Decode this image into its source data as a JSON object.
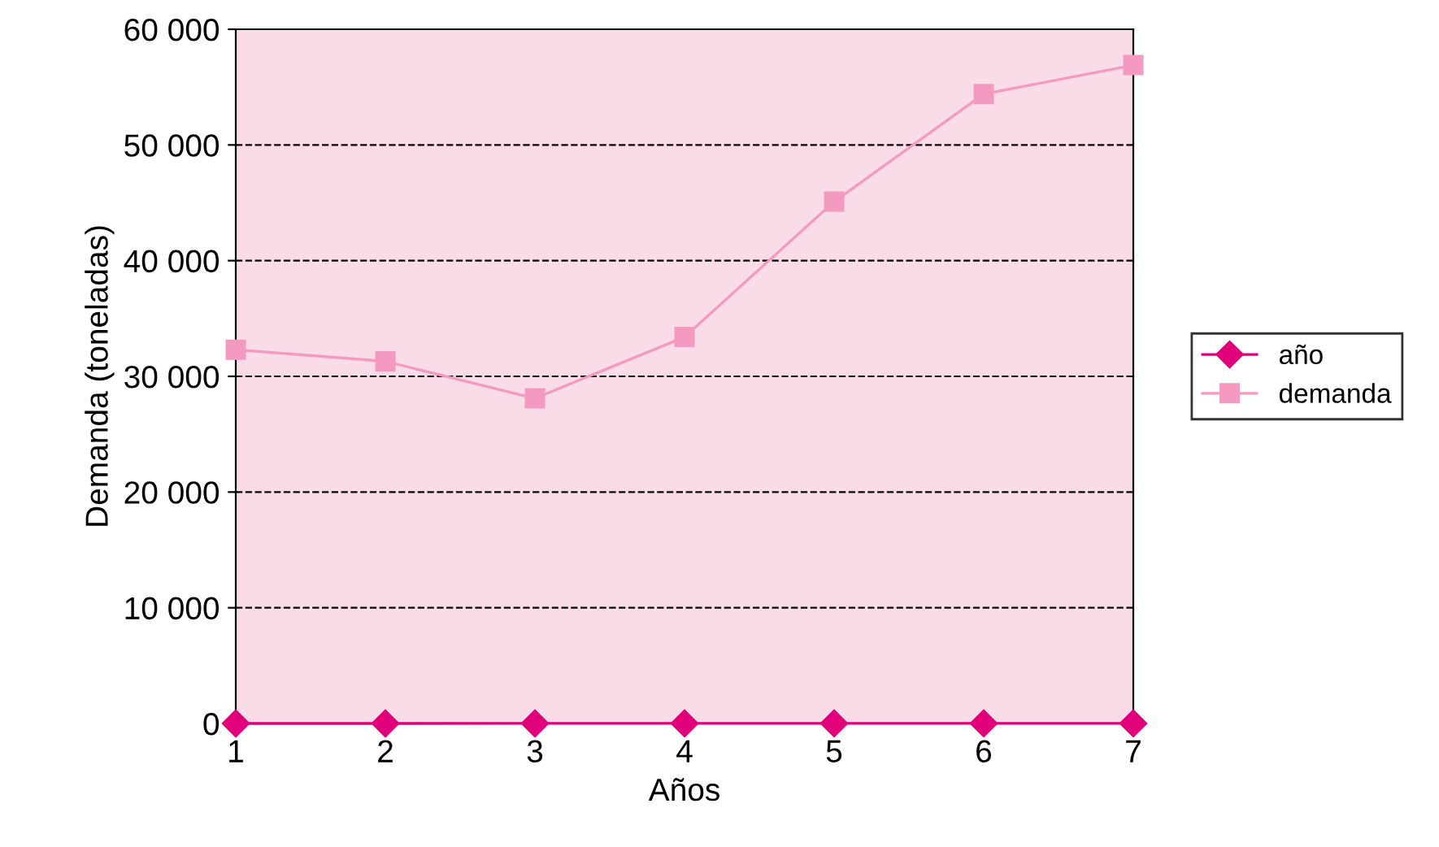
{
  "chart_data": {
    "type": "line",
    "xlabel": "Años",
    "ylabel": "Demanda (toneladas)",
    "x": [
      1,
      2,
      3,
      4,
      5,
      6,
      7
    ],
    "series": [
      {
        "name": "año",
        "color": "#e2007a",
        "marker": "diamond",
        "values": [
          1,
          2,
          3,
          4,
          5,
          6,
          7
        ]
      },
      {
        "name": "demanda",
        "color": "#f49ac1",
        "marker": "square",
        "values": [
          32300,
          31300,
          28100,
          33400,
          45100,
          54400,
          56900
        ]
      }
    ],
    "xlim": [
      1,
      7
    ],
    "xticks": [
      1,
      2,
      3,
      4,
      5,
      6,
      7
    ],
    "ylim": [
      0,
      60000
    ],
    "yticks": [
      0,
      {
        "value": 10000,
        "label": "10 000"
      },
      {
        "value": 20000,
        "label": "20 000"
      },
      {
        "value": 30000,
        "label": "30 000"
      },
      {
        "value": 40000,
        "label": "40 000"
      },
      {
        "value": 50000,
        "label": "50 000"
      },
      {
        "value": 60000,
        "label": "60 000"
      }
    ],
    "grid": "y",
    "legend": "right"
  }
}
